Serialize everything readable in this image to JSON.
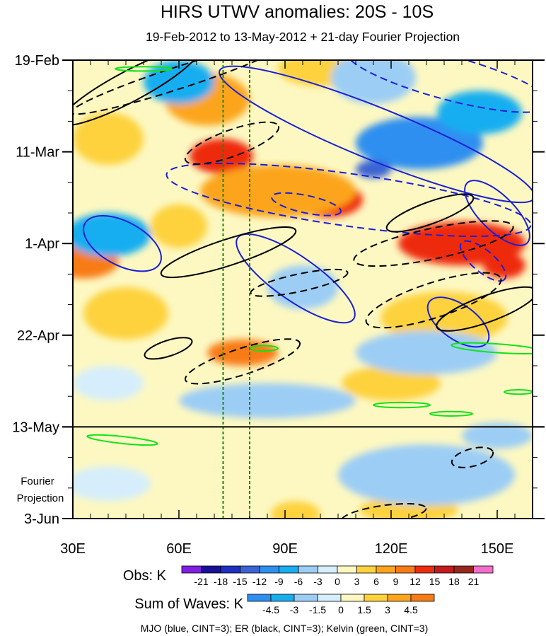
{
  "chart_data": {
    "type": "heatmap",
    "title": "HIRS UTWV anomalies: 20S - 10S",
    "subtitle": "19-Feb-2012 to 13-May-2012 + 21-day Fourier Projection",
    "x_axis": {
      "range": [
        30,
        160
      ],
      "ticks": [
        30,
        60,
        90,
        120,
        150
      ],
      "tick_labels": [
        "30E",
        "60E",
        "90E",
        "120E",
        "150E"
      ]
    },
    "y_axis": {
      "range_days": [
        0,
        105
      ],
      "ticks": [
        0,
        21,
        42,
        63,
        84,
        105
      ],
      "tick_labels": [
        "19-Feb",
        "11-Mar",
        "1-Apr",
        "22-Apr",
        "13-May",
        "3-Jun"
      ],
      "direction": "time increases downward"
    },
    "projection_start_day": 84,
    "projection_label": [
      "Fourier",
      "Projection"
    ],
    "reference_lines_lon": [
      72.5,
      80
    ],
    "obs_colorbar": {
      "label": "Obs: K",
      "levels": [
        -21,
        -18,
        -15,
        -12,
        -9,
        -6,
        -3,
        0,
        3,
        6,
        9,
        12,
        15,
        18,
        21
      ],
      "level_labels": [
        "-21",
        "-18",
        "-15",
        "-12",
        "-9",
        "-6",
        "-3",
        "0",
        "3",
        "6",
        "9",
        "12",
        "15",
        "18",
        "21"
      ],
      "colors": [
        "#7f1fe0",
        "#1a0f99",
        "#1f2fbf",
        "#3a64d4",
        "#2d8ff0",
        "#19aef0",
        "#9ccdf5",
        "#d6eefb",
        "#fdf8c2",
        "#fdd23c",
        "#fca51c",
        "#f87c14",
        "#ee2c0f",
        "#c41c1c",
        "#96271f",
        "#f26ecc"
      ]
    },
    "waves_colorbar": {
      "label": "Sum of Waves: K",
      "levels": [
        -4.5,
        -3,
        -1.5,
        0,
        1.5,
        3,
        4.5
      ],
      "level_labels": [
        "-4.5",
        "-3",
        "-1.5",
        "0",
        "1.5",
        "3",
        "4.5"
      ],
      "colors": [
        "#2d8ff0",
        "#19aef0",
        "#9ccdf5",
        "#d6eefb",
        "#fdf8c2",
        "#fdd23c",
        "#fca51c",
        "#f87c14"
      ]
    },
    "contour_legend": "MJO (blue, CINT=3); ER (black, CINT=3); Kelvin (green, CINT=3)",
    "anomaly_blobs": [
      {
        "lon": 68,
        "day": 9,
        "rlon": 12,
        "rday": 6,
        "value": 6
      },
      {
        "lon": 72,
        "day": 22,
        "rlon": 9,
        "rday": 4,
        "value": 12
      },
      {
        "lon": 102,
        "day": 32,
        "rlon": 10,
        "rday": 4,
        "value": 14
      },
      {
        "lon": 88,
        "day": 30,
        "rlon": 22,
        "rday": 6,
        "value": 6
      },
      {
        "lon": 140,
        "day": 42,
        "rlon": 18,
        "rday": 5,
        "value": 12
      },
      {
        "lon": 152,
        "day": 47,
        "rlon": 6,
        "rday": 3,
        "value": 14
      },
      {
        "lon": 33,
        "day": 46,
        "rlon": 10,
        "rday": 4,
        "value": 9
      },
      {
        "lon": 60,
        "day": 38,
        "rlon": 8,
        "rday": 5,
        "value": 5
      },
      {
        "lon": 78,
        "day": 67,
        "rlon": 10,
        "rday": 3,
        "value": 10
      },
      {
        "lon": 45,
        "day": 58,
        "rlon": 12,
        "rday": 6,
        "value": 4
      },
      {
        "lon": 100,
        "day": 2,
        "rlon": 12,
        "rday": 4,
        "value": 5
      },
      {
        "lon": 40,
        "day": 18,
        "rlon": 10,
        "rday": 6,
        "value": 4
      },
      {
        "lon": 135,
        "day": 59,
        "rlon": 18,
        "rday": 6,
        "value": 4
      },
      {
        "lon": 120,
        "day": 74,
        "rlon": 14,
        "rday": 4,
        "value": 4
      },
      {
        "lon": 93,
        "day": 104,
        "rlon": 7,
        "rday": 3,
        "value": 1.7
      },
      {
        "lon": 125,
        "day": 103,
        "rlon": 14,
        "rday": 3,
        "value": 2.2
      },
      {
        "lon": 70,
        "day": 95,
        "rlon": 20,
        "rday": 4,
        "value": 0.8
      },
      {
        "lon": 115,
        "day": 4,
        "rlon": 12,
        "rday": 6,
        "value": -6
      },
      {
        "lon": 128,
        "day": 19,
        "rlon": 18,
        "rday": 6,
        "value": -10
      },
      {
        "lon": 115,
        "day": 25,
        "rlon": 5,
        "rday": 2,
        "value": -14
      },
      {
        "lon": 145,
        "day": 12,
        "rlon": 12,
        "rday": 5,
        "value": -8
      },
      {
        "lon": 40,
        "day": 40,
        "rlon": 12,
        "rday": 5,
        "value": -8
      },
      {
        "lon": 95,
        "day": 52,
        "rlon": 10,
        "rday": 5,
        "value": -6
      },
      {
        "lon": 60,
        "day": 5,
        "rlon": 10,
        "rday": 5,
        "value": -8
      },
      {
        "lon": 130,
        "day": 67,
        "rlon": 20,
        "rday": 5,
        "value": -4
      },
      {
        "lon": 85,
        "day": 78,
        "rlon": 25,
        "rday": 4,
        "value": -4
      },
      {
        "lon": 40,
        "day": 74,
        "rlon": 10,
        "rday": 4,
        "value": -3
      },
      {
        "lon": 130,
        "day": 95,
        "rlon": 25,
        "rday": 7,
        "value": -2
      },
      {
        "lon": 40,
        "day": 97,
        "rlon": 12,
        "rday": 4,
        "value": -1.2
      },
      {
        "lon": 150,
        "day": 86,
        "rlon": 10,
        "rday": 3,
        "value": -2.5
      }
    ],
    "contours": [
      {
        "wave": "MJO",
        "sign": "positive",
        "lon": 116,
        "day": 17,
        "rlon": 48,
        "rday": 6,
        "angle": 22
      },
      {
        "wave": "MJO",
        "sign": "positive",
        "lon": 44,
        "day": 42,
        "rlon": 12,
        "rday": 5,
        "angle": 28
      },
      {
        "wave": "MJO",
        "sign": "positive",
        "lon": 93,
        "day": 50,
        "rlon": 20,
        "rday": 5,
        "angle": 35
      },
      {
        "wave": "MJO",
        "sign": "positive",
        "lon": 150,
        "day": 35,
        "rlon": 12,
        "rday": 4,
        "angle": 45
      },
      {
        "wave": "MJO",
        "sign": "positive",
        "lon": 139,
        "day": 60,
        "rlon": 10,
        "rday": 4,
        "angle": 35
      },
      {
        "wave": "MJO",
        "sign": "negative",
        "lon": 108,
        "day": 32,
        "rlon": 52,
        "rday": 6,
        "angle": 8
      },
      {
        "wave": "MJO",
        "sign": "negative",
        "lon": 136,
        "day": 4,
        "rlon": 30,
        "rday": 5,
        "angle": 15
      },
      {
        "wave": "MJO",
        "sign": "negative",
        "lon": 96,
        "day": 33,
        "rlon": 10,
        "rday": 2,
        "angle": 12
      },
      {
        "wave": "MJO",
        "sign": "negative",
        "lon": 146,
        "day": 46,
        "rlon": 8,
        "rday": 2.5,
        "angle": 40
      },
      {
        "wave": "ER",
        "sign": "positive",
        "lon": 46,
        "day": 6,
        "rlon": 22,
        "rday": 3.5,
        "angle": -28
      },
      {
        "wave": "ER",
        "sign": "positive",
        "lon": 74,
        "day": 44,
        "rlon": 20,
        "rday": 3,
        "angle": -18
      },
      {
        "wave": "ER",
        "sign": "positive",
        "lon": 131,
        "day": 35,
        "rlon": 13,
        "rday": 2.5,
        "angle": -20
      },
      {
        "wave": "ER",
        "sign": "positive",
        "lon": 147,
        "day": 57,
        "rlon": 15,
        "rday": 3,
        "angle": -20
      },
      {
        "wave": "ER",
        "sign": "positive",
        "lon": 57,
        "day": 66,
        "rlon": 7,
        "rday": 1.8,
        "angle": -18
      },
      {
        "wave": "ER",
        "sign": "negative",
        "lon": 60,
        "day": 4,
        "rlon": 32,
        "rday": 2.5,
        "angle": -18
      },
      {
        "wave": "ER",
        "sign": "negative",
        "lon": 75,
        "day": 19,
        "rlon": 14,
        "rday": 3,
        "angle": -20
      },
      {
        "wave": "ER",
        "sign": "negative",
        "lon": 132,
        "day": 42,
        "rlon": 23,
        "rday": 3.5,
        "angle": -12
      },
      {
        "wave": "ER",
        "sign": "negative",
        "lon": 94,
        "day": 51,
        "rlon": 14,
        "rday": 2,
        "angle": -12
      },
      {
        "wave": "ER",
        "sign": "negative",
        "lon": 78,
        "day": 69,
        "rlon": 17,
        "rday": 3,
        "angle": -18
      },
      {
        "wave": "ER",
        "sign": "negative",
        "lon": 132,
        "day": 55,
        "rlon": 20,
        "rday": 4,
        "angle": -18
      },
      {
        "wave": "ER",
        "sign": "negative",
        "lon": 143,
        "day": 91,
        "rlon": 6,
        "rday": 2,
        "angle": -15
      },
      {
        "wave": "ER",
        "sign": "negative",
        "lon": 118,
        "day": 104,
        "rlon": 12,
        "rday": 2,
        "angle": -8
      },
      {
        "wave": "Kelvin",
        "sign": "positive",
        "lon": 150,
        "day": 66,
        "rlon": 13,
        "rday": 1,
        "angle": 4
      },
      {
        "wave": "Kelvin",
        "sign": "positive",
        "lon": 50,
        "day": 2,
        "rlon": 8,
        "rday": 0.5,
        "angle": 0
      },
      {
        "wave": "Kelvin",
        "sign": "positive",
        "lon": 44,
        "day": 87,
        "rlon": 10,
        "rday": 0.8,
        "angle": 6
      },
      {
        "wave": "Kelvin",
        "sign": "positive",
        "lon": 123,
        "day": 79,
        "rlon": 8,
        "rday": 0.6,
        "angle": 0
      },
      {
        "wave": "Kelvin",
        "sign": "positive",
        "lon": 84,
        "day": 66,
        "rlon": 4,
        "rday": 0.6,
        "angle": 0
      },
      {
        "wave": "Kelvin",
        "sign": "positive",
        "lon": 156,
        "day": 76,
        "rlon": 4,
        "rday": 0.5,
        "angle": 0
      },
      {
        "wave": "Kelvin",
        "sign": "positive",
        "lon": 137,
        "day": 81,
        "rlon": 6,
        "rday": 0.5,
        "angle": 0
      }
    ]
  }
}
